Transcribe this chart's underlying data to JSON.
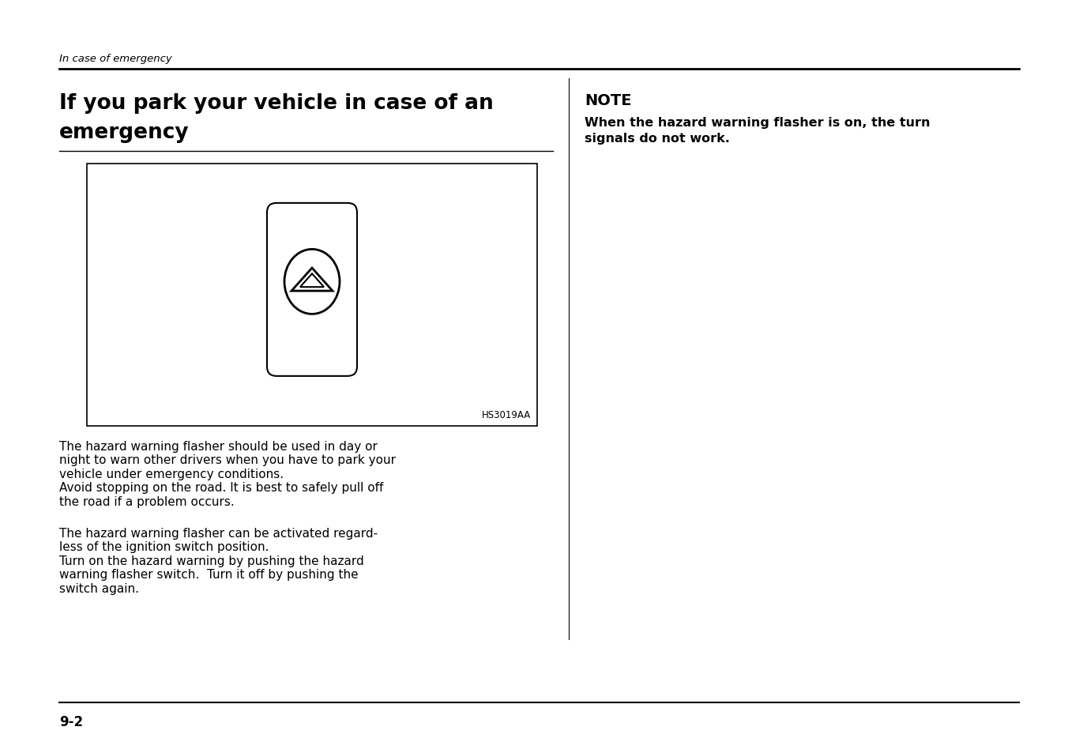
{
  "bg_color": "#ffffff",
  "header_italic": "In case of emergency",
  "title_line1": "If you park your vehicle in case of an",
  "title_line2": "emergency",
  "note_title": "NOTE",
  "note_text_line1": "When the hazard warning flasher is on, the turn",
  "note_text_line2": "signals do not work.",
  "image_code": "HS3019AA",
  "para1_lines": [
    "The hazard warning flasher should be used in day or",
    "night to warn other drivers when you have to park your",
    "vehicle under emergency conditions.",
    "Avoid stopping on the road. It is best to safely pull off",
    "the road if a problem occurs."
  ],
  "para2_lines": [
    "The hazard warning flasher can be activated regard-",
    "less of the ignition switch position.",
    "Turn on the hazard warning by pushing the hazard",
    "warning flasher switch.  Turn it off by pushing the",
    "switch again."
  ],
  "page_num": "9-2"
}
